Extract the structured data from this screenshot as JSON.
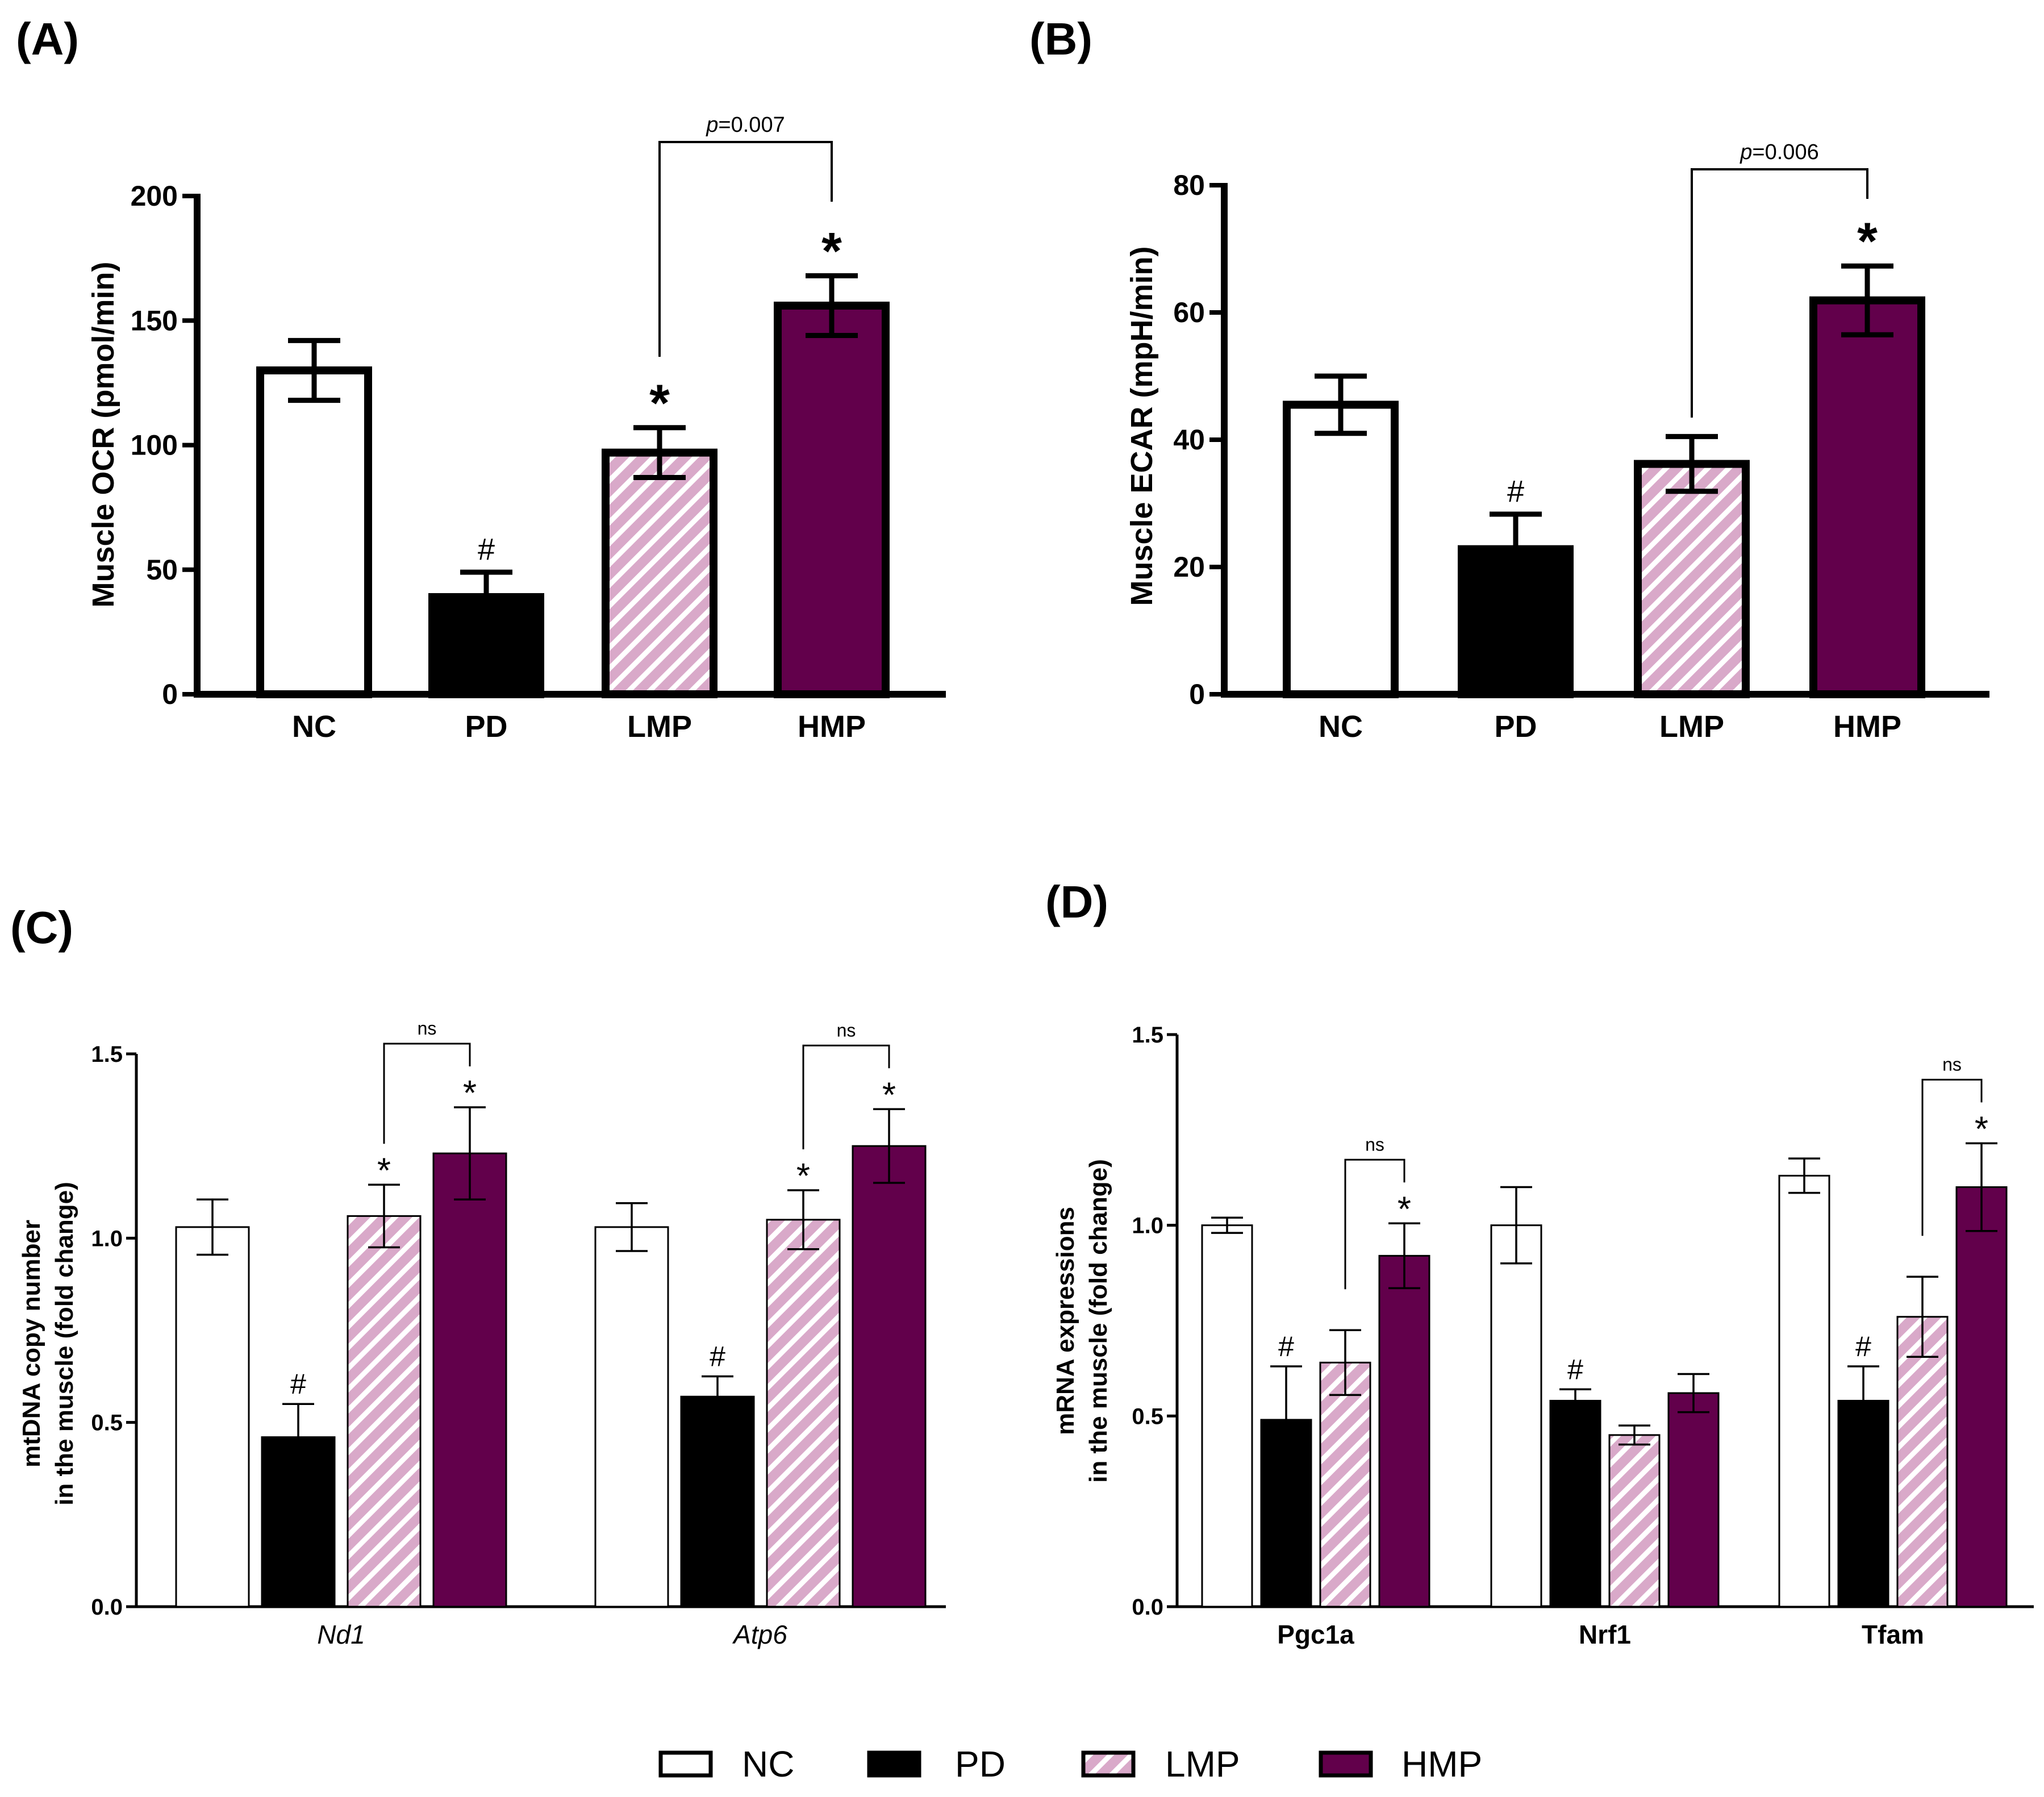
{
  "colors": {
    "NC": "#ffffff",
    "PD": "#000000",
    "LMP": "#d9a9c9",
    "HMP": "#62004b",
    "stroke": "#000000"
  },
  "legend": [
    "NC",
    "PD",
    "LMP",
    "HMP"
  ],
  "chart_data": [
    {
      "panel": "(A)",
      "type": "bar",
      "ylabel": "Muscle OCR (pmol/min)",
      "ylim": [
        0,
        200
      ],
      "yticks": [
        0,
        50,
        100,
        150,
        200
      ],
      "categories": [
        "NC",
        "PD",
        "LMP",
        "HMP"
      ],
      "values": [
        130,
        39,
        97,
        156
      ],
      "errors": [
        12,
        10,
        10,
        12
      ],
      "marks": [
        "",
        "#",
        "*",
        "*"
      ],
      "comparison": {
        "from": 2,
        "to": 3,
        "label_prefix": "p",
        "label_value": "=0.007"
      }
    },
    {
      "panel": "(B)",
      "type": "bar",
      "ylabel": "Muscle ECAR (mpH/min)",
      "ylim": [
        0,
        80
      ],
      "yticks": [
        0,
        20,
        40,
        60,
        80
      ],
      "categories": [
        "NC",
        "PD",
        "LMP",
        "HMP"
      ],
      "values": [
        45.5,
        22.8,
        36.2,
        61.9
      ],
      "errors": [
        4.5,
        5.5,
        4.3,
        5.4
      ],
      "marks": [
        "",
        "#",
        "",
        "*"
      ],
      "comparison": {
        "from": 2,
        "to": 3,
        "label_prefix": "p",
        "label_value": "=0.006"
      }
    },
    {
      "panel": "(C)",
      "type": "bar",
      "ylabel_line1": "mtDNA copy number",
      "ylabel_line2": "in the muscle (fold change)",
      "ylim": [
        0,
        1.5
      ],
      "yticks": [
        "0.0",
        "0.5",
        "1.0",
        "1.5"
      ],
      "groups": [
        {
          "label": "Nd1",
          "values": [
            1.03,
            0.46,
            1.06,
            1.23
          ],
          "errors": [
            0.075,
            0.09,
            0.085,
            0.125
          ],
          "marks": [
            "",
            "#",
            "*",
            "*"
          ],
          "comparison": {
            "from": 2,
            "to": 3,
            "label": "ns"
          }
        },
        {
          "label": "Atp6",
          "values": [
            1.03,
            0.57,
            1.05,
            1.25
          ],
          "errors": [
            0.065,
            0.055,
            0.08,
            0.1
          ],
          "marks": [
            "",
            "#",
            "*",
            "*"
          ],
          "comparison": {
            "from": 2,
            "to": 3,
            "label": "ns"
          }
        }
      ]
    },
    {
      "panel": "(D)",
      "type": "bar",
      "ylabel_line1": "mRNA expressions",
      "ylabel_line2": "in the muscle (fold change)",
      "ylim": [
        0,
        1.5
      ],
      "yticks": [
        "0.0",
        "0.5",
        "1.0",
        "1.5"
      ],
      "groups": [
        {
          "label": "Pgc1a",
          "values": [
            1.0,
            0.49,
            0.64,
            0.92
          ],
          "errors": [
            0.02,
            0.14,
            0.085,
            0.085
          ],
          "marks": [
            "",
            "#",
            "",
            "*"
          ],
          "comparison": {
            "from": 2,
            "to": 3,
            "label": "ns"
          }
        },
        {
          "label": "Nrf1",
          "values": [
            1.0,
            0.54,
            0.45,
            0.56
          ],
          "errors": [
            0.1,
            0.03,
            0.025,
            0.05
          ],
          "marks": [
            "",
            "#",
            "",
            ""
          ],
          "comparison": null
        },
        {
          "label": "Tfam",
          "values": [
            1.13,
            0.54,
            0.76,
            1.1
          ],
          "errors": [
            0.045,
            0.09,
            0.105,
            0.115
          ],
          "marks": [
            "",
            "#",
            "",
            "*"
          ],
          "comparison": {
            "from": 2,
            "to": 3,
            "label": "ns"
          }
        }
      ]
    }
  ]
}
